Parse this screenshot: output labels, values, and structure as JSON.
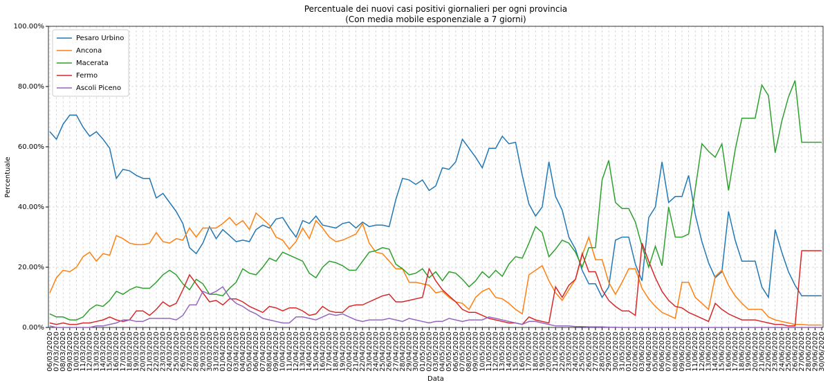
{
  "chart_data": {
    "type": "line",
    "title": "Percentuale dei nuovi casi positivi giornalieri per ogni provincia",
    "subtitle": "(Con media mobile esponenziale a 7 giorni)",
    "x_label": "Data",
    "y_label": "Percentuale",
    "grid": true,
    "legend": "upper left",
    "categories": [
      "06/03/2020",
      "07/03/2020",
      "08/03/2020",
      "09/03/2020",
      "10/03/2020",
      "11/03/2020",
      "12/03/2020",
      "13/03/2020",
      "14/03/2020",
      "15/03/2020",
      "16/03/2020",
      "17/03/2020",
      "18/03/2020",
      "19/03/2020",
      "20/03/2020",
      "21/03/2020",
      "22/03/2020",
      "23/03/2020",
      "24/03/2020",
      "25/03/2020",
      "26/03/2020",
      "27/03/2020",
      "28/03/2020",
      "29/03/2020",
      "30/03/2020",
      "31/03/2020",
      "01/04/2020",
      "02/04/2020",
      "03/04/2020",
      "04/04/2020",
      "05/04/2020",
      "06/04/2020",
      "07/04/2020",
      "08/04/2020",
      "09/04/2020",
      "10/04/2020",
      "11/04/2020",
      "12/04/2020",
      "13/04/2020",
      "14/04/2020",
      "15/04/2020",
      "16/04/2020",
      "17/04/2020",
      "18/04/2020",
      "19/04/2020",
      "20/04/2020",
      "21/04/2020",
      "22/04/2020",
      "23/04/2020",
      "24/04/2020",
      "25/04/2020",
      "26/04/2020",
      "27/04/2020",
      "28/04/2020",
      "29/04/2020",
      "30/04/2020",
      "01/05/2020",
      "02/05/2020",
      "03/05/2020",
      "04/05/2020",
      "05/05/2020",
      "06/05/2020",
      "07/05/2020",
      "08/05/2020",
      "09/05/2020",
      "10/05/2020",
      "11/05/2020",
      "12/05/2020",
      "13/05/2020",
      "14/05/2020",
      "15/05/2020",
      "16/05/2020",
      "17/05/2020",
      "18/05/2020",
      "19/05/2020",
      "20/05/2020",
      "21/05/2020",
      "22/05/2020",
      "23/05/2020",
      "24/05/2020",
      "25/05/2020",
      "26/05/2020",
      "27/05/2020",
      "28/05/2020",
      "29/05/2020",
      "30/05/2020",
      "31/05/2020",
      "01/06/2020",
      "02/06/2020",
      "03/06/2020",
      "04/06/2020",
      "05/06/2020",
      "06/06/2020",
      "07/06/2020",
      "08/06/2020",
      "09/06/2020",
      "10/06/2020",
      "11/06/2020",
      "12/06/2020",
      "13/06/2020",
      "14/06/2020",
      "15/06/2020",
      "16/06/2020",
      "17/06/2020",
      "18/06/2020",
      "19/06/2020",
      "20/06/2020",
      "21/06/2020",
      "22/06/2020",
      "23/06/2020",
      "24/06/2020",
      "25/06/2020",
      "26/06/2020",
      "27/06/2020",
      "28/06/2020",
      "29/06/2020",
      "30/06/2020"
    ],
    "ylim": [
      0,
      100
    ],
    "yticks": [
      {
        "value": 0,
        "label": "0.00%"
      },
      {
        "value": 20,
        "label": "20.00%"
      },
      {
        "value": 40,
        "label": "40.00%"
      },
      {
        "value": 60,
        "label": "60.00%"
      },
      {
        "value": 80,
        "label": "80.00%"
      },
      {
        "value": 100,
        "label": "100.00%"
      }
    ],
    "series": [
      {
        "name": "Pesaro Urbino",
        "color": "#1f77b4",
        "values": [
          65,
          62.5,
          67.5,
          70.5,
          70.5,
          66.5,
          63.5,
          65,
          62.5,
          59.5,
          49.5,
          52.5,
          52,
          50.5,
          49.5,
          49.5,
          43,
          44.5,
          41.5,
          38.5,
          34.5,
          26.5,
          24.5,
          28,
          33.5,
          29.5,
          32.5,
          30.5,
          28.5,
          29,
          28.5,
          32.5,
          34,
          33,
          36,
          36.5,
          33,
          30,
          35.5,
          34.5,
          37,
          34,
          33.5,
          33,
          34.5,
          35,
          33,
          35,
          33.5,
          34,
          34,
          33.5,
          42.5,
          49.5,
          49,
          47.5,
          49,
          45.5,
          47,
          53,
          52.5,
          55,
          62.5,
          59.5,
          56.5,
          53,
          59.5,
          59.5,
          63.5,
          61,
          61.5,
          50.5,
          41,
          37,
          40,
          55,
          43.5,
          39,
          30,
          26,
          19,
          14.5,
          14.5,
          10,
          13.5,
          29,
          30,
          30,
          21,
          15.5,
          36.5,
          40,
          55,
          41.5,
          43.5,
          43.5,
          50.5,
          37.5,
          28.5,
          21.5,
          16.5,
          18.5,
          38.5,
          29,
          22,
          22,
          22,
          13.5,
          10,
          32.5,
          25,
          18.5,
          14,
          10.5,
          10.5,
          10.5,
          10.5
        ]
      },
      {
        "name": "Ancona",
        "color": "#ff7f0e",
        "values": [
          11.5,
          16.5,
          19,
          18.5,
          20,
          23.5,
          25,
          22,
          24.5,
          24,
          30.5,
          29.5,
          28,
          27.5,
          27.5,
          28,
          31.5,
          28.5,
          28,
          29.5,
          29,
          33,
          30,
          33,
          33,
          33,
          34.5,
          36.5,
          34,
          35.5,
          32.5,
          38,
          36,
          34,
          30,
          29,
          26,
          28.5,
          33,
          29.5,
          35.5,
          33,
          30,
          28.5,
          29,
          30,
          31,
          34.5,
          28,
          25,
          24.5,
          22,
          19.5,
          19.5,
          15,
          15,
          14.5,
          14,
          11.5,
          12,
          10,
          8.5,
          8,
          6,
          10,
          12,
          13,
          10,
          9.5,
          8,
          6,
          4.5,
          17.5,
          19,
          20.5,
          15.5,
          11.5,
          9,
          12.5,
          16,
          24,
          30,
          22.5,
          22.5,
          15,
          11,
          15,
          19.5,
          19.5,
          13,
          9.5,
          7,
          5,
          4,
          3,
          15,
          15,
          10,
          8,
          6,
          17,
          19,
          14,
          10.5,
          8,
          6,
          6,
          6,
          3.5,
          2.5,
          2,
          1.5,
          1,
          1,
          0.8,
          0.8,
          0.8
        ]
      },
      {
        "name": "Macerata",
        "color": "#2ca02c",
        "values": [
          4.5,
          3.5,
          3.5,
          2.5,
          2.5,
          3.5,
          6,
          7.5,
          7,
          9,
          12,
          11,
          12.5,
          13.5,
          13,
          13,
          15,
          17.5,
          19,
          17.5,
          14.5,
          12.5,
          16,
          14.5,
          11,
          11,
          10.5,
          13,
          15,
          19.5,
          18,
          17.5,
          20,
          23,
          22,
          25,
          24,
          23,
          22,
          18,
          16.5,
          20,
          22,
          21.5,
          20.5,
          19,
          19,
          22,
          25,
          25.5,
          26.5,
          26,
          21,
          19.5,
          17.5,
          18,
          19.5,
          16.5,
          18.5,
          15.5,
          18.5,
          18,
          16,
          13.5,
          15.5,
          18.5,
          16.5,
          19,
          17,
          21,
          23.5,
          23,
          28,
          33.5,
          31.5,
          23.5,
          26,
          29,
          28,
          25,
          20,
          26.5,
          26.5,
          49,
          55.5,
          41.5,
          39.5,
          39.5,
          35,
          27,
          20,
          27,
          20.5,
          40,
          30,
          30,
          31,
          46,
          61,
          58.5,
          56.5,
          61,
          45.5,
          59,
          69.5,
          69.5,
          69.5,
          80.5,
          77,
          58,
          68.5,
          76.5,
          82,
          61.5,
          61.5,
          61.5,
          61.5
        ]
      },
      {
        "name": "Fermo",
        "color": "#d62728",
        "values": [
          1.5,
          1,
          1.5,
          1,
          1,
          1.5,
          1.5,
          2,
          2.5,
          3.5,
          2.5,
          2,
          2.5,
          5.5,
          5.5,
          4,
          6,
          8.5,
          7,
          8,
          12.5,
          17.5,
          14.5,
          11.5,
          8.5,
          9,
          7.5,
          9.5,
          9.5,
          8.5,
          7,
          6,
          5,
          7,
          6.5,
          5.5,
          6.5,
          6.5,
          5.5,
          4,
          4.5,
          7,
          5.5,
          5,
          5,
          7,
          7.5,
          7.5,
          8.5,
          9.5,
          10.5,
          11,
          8.5,
          8.5,
          9,
          9.5,
          10,
          19.5,
          15.5,
          12.5,
          10.5,
          8.5,
          6,
          5,
          5,
          4,
          3,
          2.5,
          2,
          1.5,
          1.5,
          1,
          3.5,
          2.5,
          2,
          1.5,
          13.5,
          10,
          14,
          16,
          24.5,
          18.5,
          18.5,
          12.5,
          9,
          7,
          5.5,
          5.5,
          4,
          28,
          22,
          16.5,
          12,
          9,
          7,
          6.5,
          5,
          4,
          3,
          2,
          8,
          6,
          4.5,
          3.5,
          2.5,
          2.5,
          2.5,
          2,
          1.5,
          1,
          1,
          0.5,
          0.5,
          25.5,
          25.5,
          25.5,
          25.5
        ]
      },
      {
        "name": "Ascoli Piceno",
        "color": "#9467bd",
        "values": [
          0.5,
          0,
          0,
          0,
          0,
          0,
          0,
          0.5,
          0.5,
          1,
          1.5,
          2.5,
          2.5,
          2,
          2,
          3,
          3,
          3,
          3,
          2.5,
          4,
          7.5,
          7.5,
          12,
          11,
          12,
          13.5,
          10,
          8,
          7,
          5.5,
          4.5,
          3,
          2.5,
          2,
          1.5,
          1.5,
          3.5,
          3.5,
          3,
          2.5,
          3.5,
          4.5,
          4,
          4.5,
          3.5,
          2.5,
          2,
          2.5,
          2.5,
          2.5,
          3,
          2.5,
          2,
          3,
          2.5,
          2,
          1.5,
          2,
          2,
          3,
          2.5,
          2,
          2.5,
          2.5,
          2.5,
          3.5,
          3,
          2.5,
          2,
          1.5,
          1,
          2,
          2,
          1.5,
          1,
          0.5,
          0.5,
          0.5,
          0.3,
          0.3,
          0.2,
          0.2,
          0.2,
          0.1,
          0.1,
          0,
          0,
          0,
          0,
          0,
          0,
          0,
          0,
          0,
          0,
          0,
          0,
          0,
          0,
          0,
          0,
          0,
          0,
          0,
          0,
          0,
          0,
          0,
          0,
          0,
          0,
          0,
          0,
          0,
          0,
          0
        ]
      }
    ]
  }
}
